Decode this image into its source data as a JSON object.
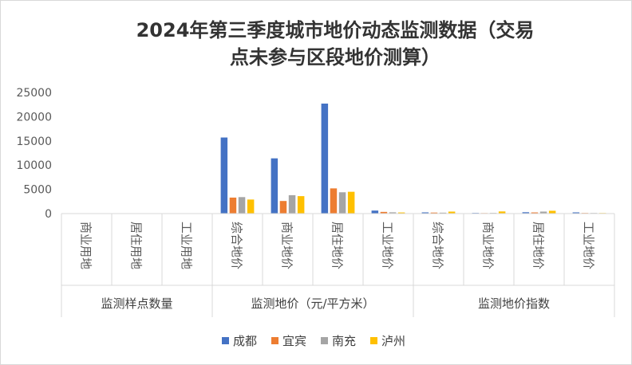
{
  "chart_data": {
    "type": "bar",
    "title_lines": [
      "2024年第三季度城市地价动态监测数据（交易",
      "点未参与区段地价测算）"
    ],
    "categories": [
      "商业用地",
      "居住用地",
      "工业用地",
      "综合地价",
      "商业地价",
      "居住地价",
      "工业地价",
      "综合地价",
      "商业地价",
      "居住地价",
      "工业地价"
    ],
    "groups": [
      {
        "label": "监测样点数量",
        "span": [
          0,
          2
        ]
      },
      {
        "label": "监测地价（元/平方米）",
        "span": [
          3,
          6
        ]
      },
      {
        "label": "监测地价指数",
        "span": [
          7,
          10
        ]
      }
    ],
    "series": [
      {
        "name": "成都",
        "color": "#4472C4",
        "values": [
          0,
          0,
          0,
          15700,
          11400,
          22700,
          620,
          250,
          140,
          280,
          250
        ]
      },
      {
        "name": "宜宾",
        "color": "#ED7D31",
        "values": [
          0,
          0,
          0,
          3300,
          2600,
          5200,
          350,
          210,
          110,
          240,
          130
        ]
      },
      {
        "name": "南充",
        "color": "#A5A5A5",
        "values": [
          0,
          0,
          0,
          3400,
          3800,
          4400,
          270,
          190,
          140,
          410,
          130
        ]
      },
      {
        "name": "泸州",
        "color": "#FFC000",
        "values": [
          0,
          0,
          0,
          2900,
          3600,
          4500,
          230,
          410,
          440,
          580,
          120
        ]
      }
    ],
    "ylim": [
      0,
      25000
    ],
    "yticks": [
      "0",
      "5000",
      "10000",
      "15000",
      "20000",
      "25000"
    ],
    "grid": false,
    "legend_position": "bottom"
  }
}
